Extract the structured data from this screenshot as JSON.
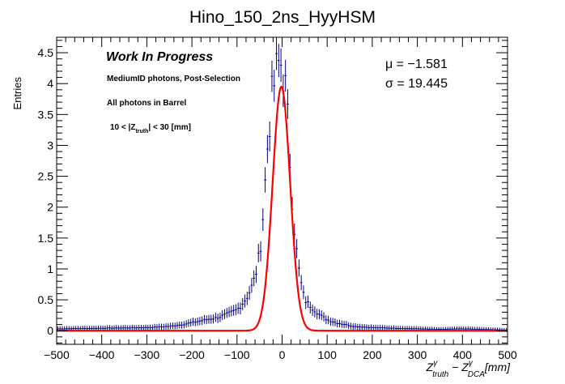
{
  "chart_data": {
    "type": "histogram",
    "title": "Hino_150_2ns_HyyHSM",
    "ylabel": "Entries",
    "xlabel": {
      "main": "Z",
      "sup1": "γ",
      "sub1": "truth",
      "minus": " − Z",
      "sup2": "γ",
      "sub2": "DCA",
      "unit": "[mm]"
    },
    "xlim": [
      -500,
      500
    ],
    "ylim": [
      -0.22,
      4.75
    ],
    "x_ticks": [
      -500,
      -400,
      -300,
      -200,
      -100,
      0,
      100,
      200,
      300,
      400,
      500
    ],
    "x_tick_labels": [
      "−500",
      "−400",
      "−300",
      "−200",
      "−100",
      "0",
      "100",
      "200",
      "300",
      "400",
      "500"
    ],
    "y_ticks": [
      0,
      0.5,
      1,
      1.5,
      2,
      2.5,
      3,
      3.5,
      4,
      4.5
    ],
    "y_tick_labels": [
      "0",
      "0.5",
      "1",
      "1.5",
      "2",
      "2.5",
      "3",
      "3.5",
      "4",
      "4.5"
    ],
    "annotations": {
      "wip": "Work In Progress",
      "selection": "MediumID photons, Post-Selection",
      "region": "All photons in Barrel",
      "zcut_pre": "10 < |Z",
      "zcut_sub": "truth",
      "zcut_post": "| < 30 [mm]",
      "mu_text": "μ = −1.581",
      "sigma_text": "σ = 19.445"
    },
    "fit": {
      "type": "gaussian",
      "mean": -1.581,
      "sigma": 19.445,
      "amplitude": 3.95,
      "color": "#ff0000"
    },
    "histogram": {
      "color": "#000080",
      "bin_edges_range": [
        -500,
        500
      ],
      "bin_width": 5,
      "anchor_x": [
        -500,
        -400,
        -300,
        -250,
        -220,
        -200,
        -180,
        -160,
        -140,
        -120,
        -100,
        -90,
        -80,
        -70,
        -60,
        -50,
        -45,
        -40,
        -35,
        -30,
        -25,
        -20,
        -15,
        -10,
        -5,
        0,
        5,
        10,
        15,
        20,
        25,
        30,
        35,
        40,
        45,
        50,
        60,
        70,
        80,
        90,
        100,
        120,
        140,
        160,
        180,
        200,
        250,
        300,
        350,
        400,
        500
      ],
      "anchor_y": [
        0.03,
        0.04,
        0.05,
        0.07,
        0.1,
        0.13,
        0.16,
        0.19,
        0.22,
        0.27,
        0.34,
        0.42,
        0.52,
        0.66,
        0.86,
        1.25,
        1.6,
        2.1,
        2.7,
        3.25,
        3.6,
        3.9,
        4.1,
        4.25,
        4.35,
        4.3,
        4.1,
        3.7,
        3.1,
        2.45,
        1.9,
        1.45,
        1.1,
        0.85,
        0.66,
        0.5,
        0.42,
        0.35,
        0.28,
        0.22,
        0.18,
        0.13,
        0.1,
        0.07,
        0.06,
        0.05,
        0.04,
        0.03,
        0.02,
        0.03,
        0.01
      ]
    }
  }
}
